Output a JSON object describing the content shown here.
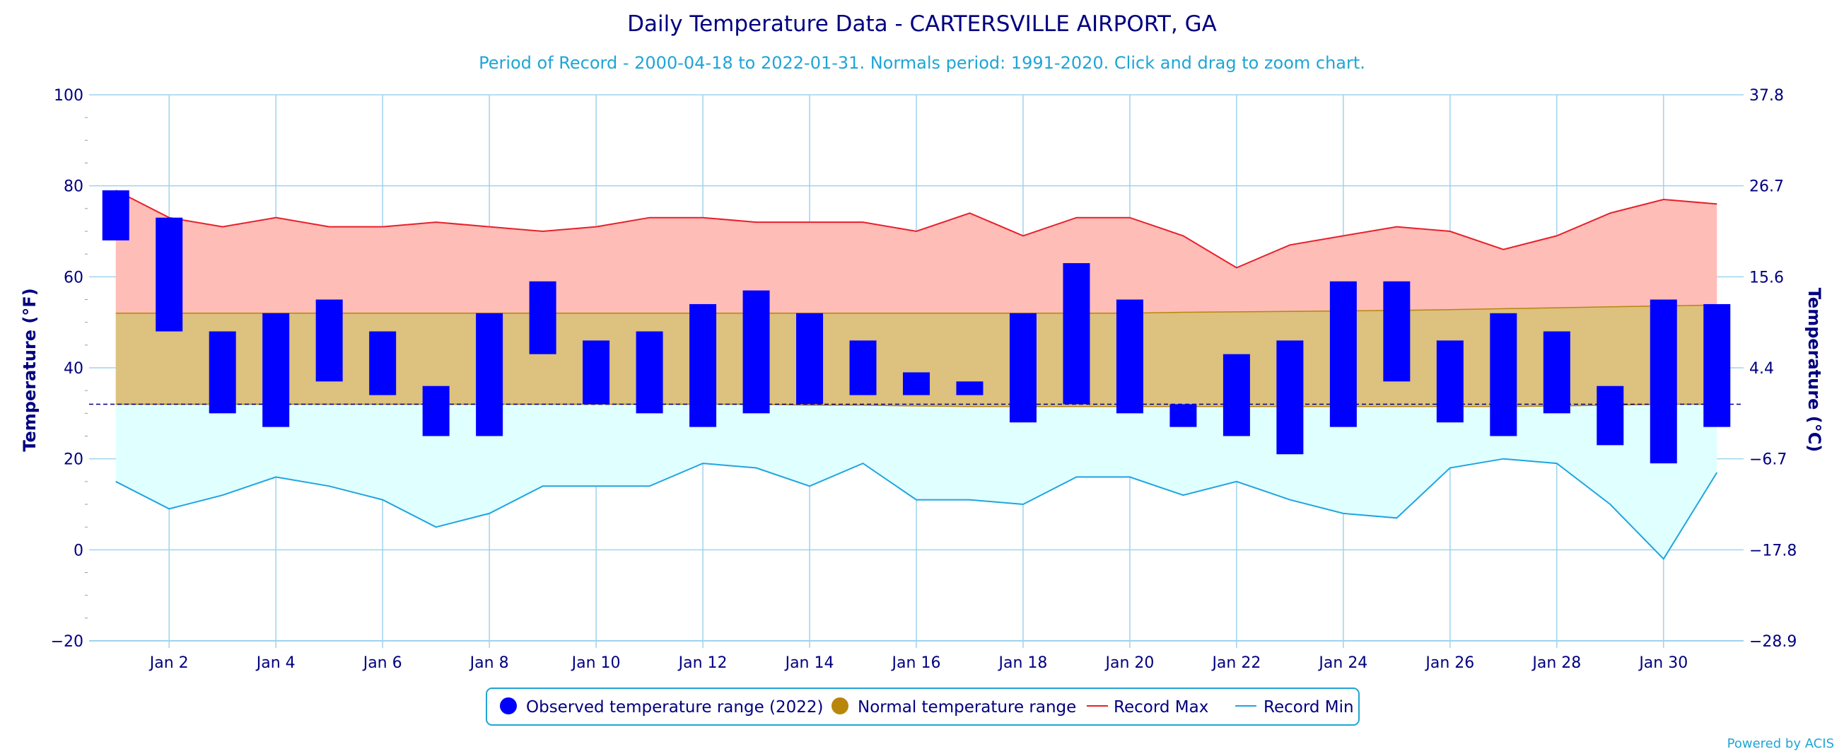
{
  "chart_data": {
    "type": "bar",
    "title": "Daily Temperature Data - CARTERSVILLE AIRPORT, GA",
    "subtitle": "Period of Record - 2000-04-18 to 2022-01-31. Normals period: 1991-2020. Click and drag to zoom chart.",
    "ylabel_left": "Temperature (°F)",
    "ylabel_right": "Temperature (°C)",
    "ylim": [
      -20,
      100
    ],
    "xlim": [
      0.5,
      31.5
    ],
    "y_ticks": [
      -20,
      0,
      20,
      40,
      60,
      80,
      100
    ],
    "y_ticks_right": [
      "-28.9",
      "-17.8",
      "-6.7",
      "4.4",
      "15.6",
      "26.7",
      "37.8"
    ],
    "x_ticks": [
      2,
      4,
      6,
      8,
      10,
      12,
      14,
      16,
      18,
      20,
      22,
      24,
      26,
      28,
      30
    ],
    "x_tick_labels": [
      "Jan 2",
      "Jan 4",
      "Jan 6",
      "Jan 8",
      "Jan 10",
      "Jan 12",
      "Jan 14",
      "Jan 16",
      "Jan 18",
      "Jan 20",
      "Jan 22",
      "Jan 24",
      "Jan 26",
      "Jan 28",
      "Jan 30"
    ],
    "freezing_line": 32,
    "grid": true,
    "legend_position": "bottom-center",
    "days": [
      1,
      2,
      3,
      4,
      5,
      6,
      7,
      8,
      9,
      10,
      11,
      12,
      13,
      14,
      15,
      16,
      17,
      18,
      19,
      20,
      21,
      22,
      23,
      24,
      25,
      26,
      27,
      28,
      29,
      30,
      31
    ],
    "observed_max": [
      79,
      73,
      48,
      52,
      55,
      48,
      36,
      52,
      59,
      46,
      48,
      54,
      57,
      52,
      46,
      39,
      37,
      52,
      63,
      55,
      32,
      43,
      46,
      59,
      59,
      46,
      52,
      48,
      36,
      55,
      54
    ],
    "observed_min": [
      68,
      48,
      30,
      27,
      37,
      34,
      25,
      25,
      43,
      32,
      30,
      27,
      30,
      32,
      34,
      34,
      34,
      28,
      32,
      30,
      27,
      25,
      21,
      27,
      37,
      28,
      25,
      30,
      23,
      19,
      27
    ],
    "normal_max": [
      52,
      52,
      52,
      52,
      52,
      52,
      52,
      52,
      52,
      52,
      52,
      52,
      52,
      52,
      52,
      52,
      52,
      52,
      52,
      52,
      52.2,
      52.3,
      52.4,
      52.5,
      52.6,
      52.8,
      53,
      53.2,
      53.4,
      53.6,
      53.8
    ],
    "normal_min": [
      32,
      32,
      32,
      32,
      32,
      32,
      32,
      32,
      32,
      32,
      32,
      32,
      32,
      31.8,
      31.8,
      31.6,
      31.5,
      31.5,
      31.5,
      31.5,
      31.5,
      31.5,
      31.5,
      31.5,
      31.5,
      31.5,
      31.5,
      31.6,
      31.8,
      32,
      32
    ],
    "record_max": [
      79,
      73,
      71,
      73,
      71,
      71,
      72,
      71,
      70,
      71,
      73,
      73,
      72,
      72,
      72,
      70,
      74,
      69,
      73,
      73,
      69,
      62,
      67,
      69,
      71,
      70,
      66,
      69,
      74,
      77,
      76
    ],
    "record_min": [
      15,
      9,
      12,
      16,
      14,
      11,
      5,
      8,
      14,
      14,
      14,
      19,
      18,
      14,
      19,
      11,
      11,
      10,
      16,
      16,
      12,
      15,
      11,
      8,
      7,
      18,
      20,
      19,
      10,
      -2,
      17
    ],
    "series": [
      {
        "name": "Observed temperature range (2022)",
        "color": "#0000ff"
      },
      {
        "name": "Normal temperature range",
        "color": "#b8860b"
      },
      {
        "name": "Record Max",
        "color": "#e8202a"
      },
      {
        "name": "Record Min",
        "color": "#1fa5e0"
      }
    ],
    "colors": {
      "record_max_fill": "#ffbdb8",
      "normal_fill": "#dcc17f",
      "record_min_fill": "#e0ffff",
      "grid": "#9fd3ee",
      "axis_text": "#000080",
      "freezing": "#000080"
    }
  },
  "credit": "Powered by ACIS"
}
